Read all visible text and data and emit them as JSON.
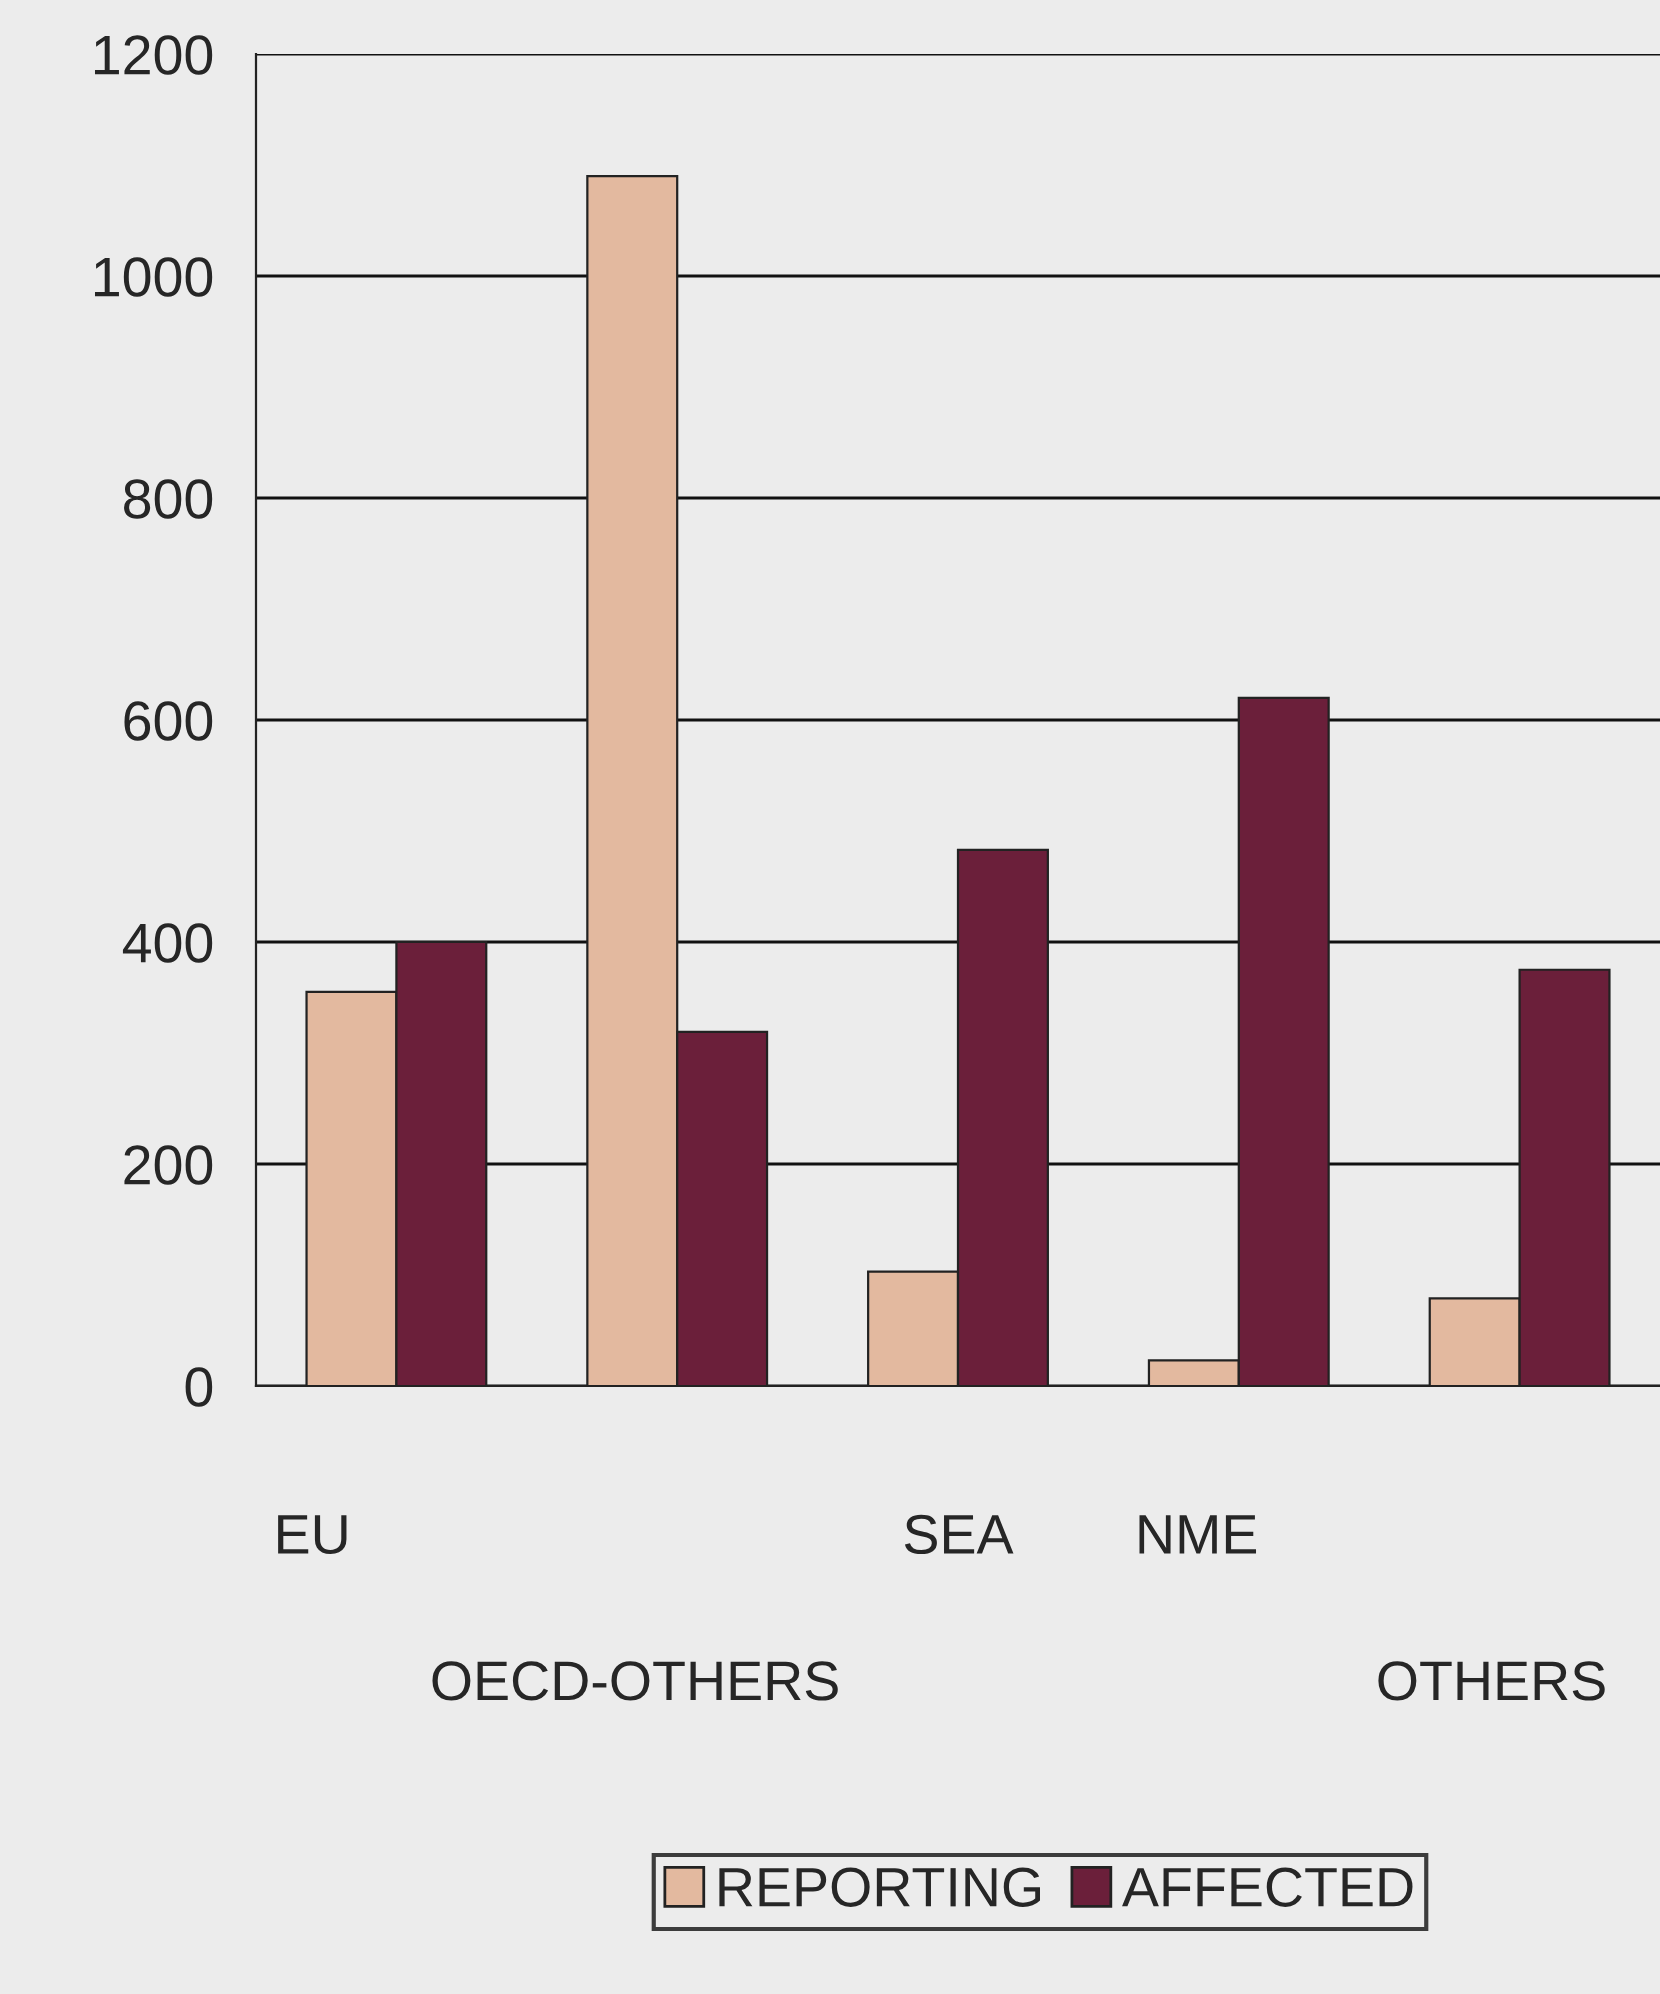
{
  "chart_data": {
    "type": "bar",
    "categories": [
      "EU",
      "OECD-OTHERS",
      "SEA",
      "NME",
      "OTHERS"
    ],
    "series": [
      {
        "name": "REPORTING",
        "color": "#e3b99f",
        "values": [
          355,
          1090,
          103,
          23,
          79
        ]
      },
      {
        "name": "AFFECTED",
        "color": "#6b1f3a",
        "values": [
          400,
          319,
          483,
          620,
          375
        ]
      }
    ],
    "ylim": [
      0,
      1200
    ],
    "yticks": [
      0,
      200,
      400,
      600,
      800,
      1000,
      1200
    ],
    "grid": "y",
    "legend": "bottom"
  }
}
